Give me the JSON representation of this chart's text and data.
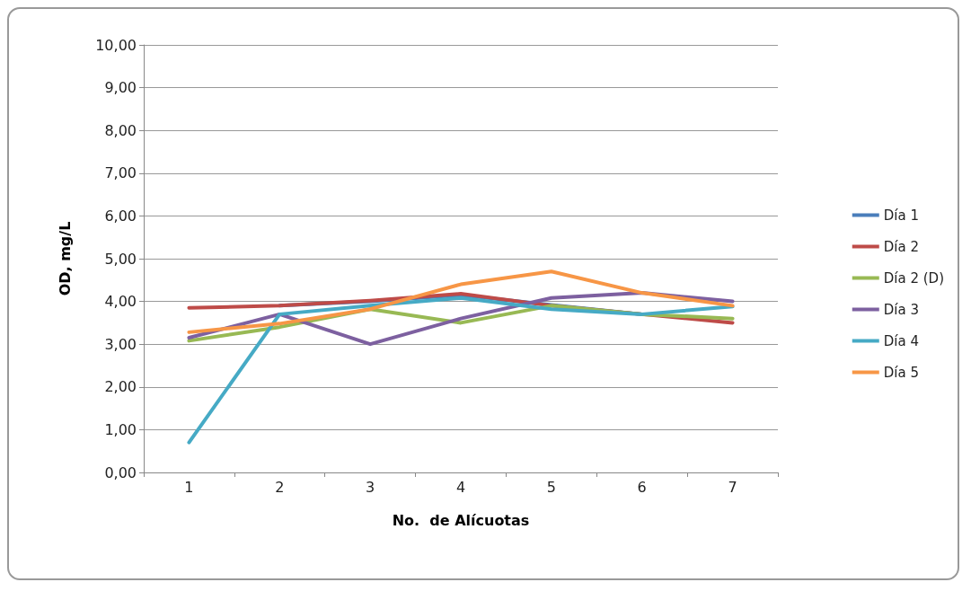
{
  "chart_data": {
    "type": "line",
    "xlabel": "No.  de Alícuotas",
    "ylabel": "OD, mg/L",
    "categories": [
      "1",
      "2",
      "3",
      "4",
      "5",
      "6",
      "7"
    ],
    "ylim": [
      0,
      10
    ],
    "yticks": [
      {
        "value": 0,
        "label": "0,00"
      },
      {
        "value": 1,
        "label": "1,00"
      },
      {
        "value": 2,
        "label": "2,00"
      },
      {
        "value": 3,
        "label": "3,00"
      },
      {
        "value": 4,
        "label": "4,00"
      },
      {
        "value": 5,
        "label": "5,00"
      },
      {
        "value": 6,
        "label": "6,00"
      },
      {
        "value": 7,
        "label": "7,00"
      },
      {
        "value": 8,
        "label": "8,00"
      },
      {
        "value": 9,
        "label": "9,00"
      },
      {
        "value": 10,
        "label": "10,00"
      }
    ],
    "grid": "y",
    "legend": "right",
    "marker": "none",
    "line_style": "solid",
    "series": [
      {
        "name": "Día 1",
        "color": "#4a7ebb",
        "values": [
          null,
          3.9,
          4.0,
          4.15,
          3.92,
          3.7,
          null
        ]
      },
      {
        "name": "Día 2",
        "color": "#be4b48",
        "values": [
          3.85,
          3.9,
          4.02,
          4.18,
          3.9,
          3.7,
          3.5
        ]
      },
      {
        "name": "Día 2 (D)",
        "color": "#98b954",
        "values": [
          3.08,
          3.4,
          3.82,
          3.5,
          3.9,
          3.7,
          3.6
        ]
      },
      {
        "name": "Día 3",
        "color": "#7d60a0",
        "values": [
          3.15,
          3.7,
          3.0,
          3.6,
          4.08,
          4.2,
          4.0
        ]
      },
      {
        "name": "Día 4",
        "color": "#46aac5",
        "values": [
          0.7,
          3.7,
          3.9,
          4.08,
          3.82,
          3.7,
          3.88
        ]
      },
      {
        "name": "Día 5",
        "color": "#f79646",
        "values": [
          3.28,
          3.48,
          3.82,
          4.4,
          4.7,
          4.2,
          3.9
        ]
      }
    ]
  }
}
